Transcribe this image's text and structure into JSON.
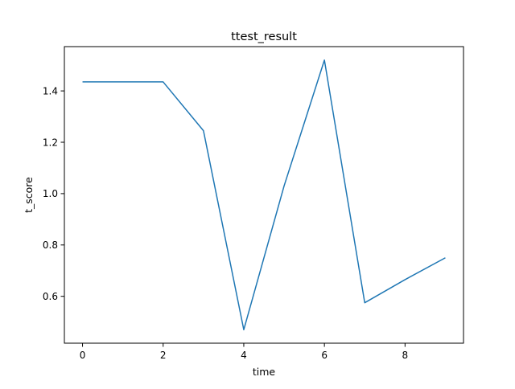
{
  "chart_data": {
    "type": "line",
    "title": "ttest_result",
    "xlabel": "time",
    "ylabel": "t_score",
    "x": [
      0,
      1,
      2,
      3,
      4,
      5,
      6,
      7,
      8,
      9
    ],
    "series": [
      {
        "values": [
          1.435,
          1.435,
          1.435,
          1.245,
          0.47,
          1.03,
          1.52,
          0.575,
          0.665,
          0.75
        ],
        "color": "#1f77b4"
      }
    ],
    "xlim": [
      -0.45,
      9.45
    ],
    "ylim": [
      0.4175,
      1.5725
    ],
    "xticks": [
      0,
      2,
      4,
      6,
      8
    ],
    "xtick_labels": [
      "0",
      "2",
      "4",
      "6",
      "8"
    ],
    "yticks": [
      0.6,
      0.8,
      1.0,
      1.2,
      1.4
    ],
    "ytick_labels": [
      "0.6",
      "0.8",
      "1.0",
      "1.2",
      "1.4"
    ],
    "grid": false,
    "legend": false
  }
}
